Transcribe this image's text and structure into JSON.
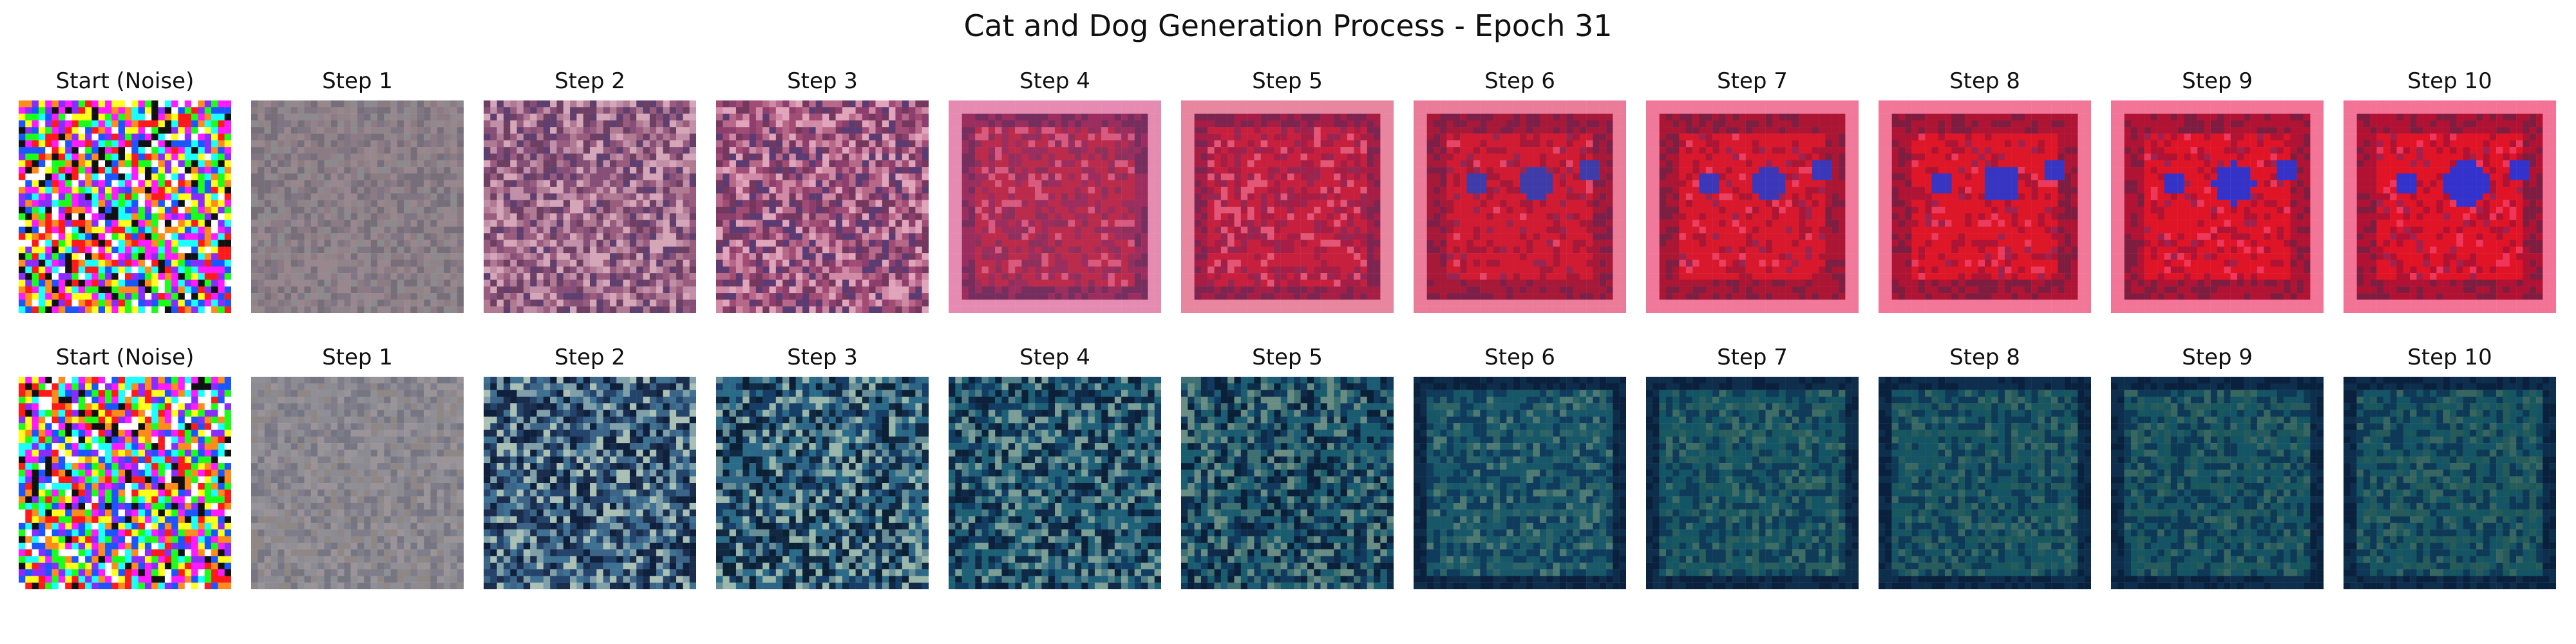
{
  "figure": {
    "title": "Cat and Dog Generation Process - Epoch 31"
  },
  "rows": [
    {
      "row_name": "cat-row",
      "panels": [
        {
          "label": "Start (Noise)",
          "kind": "noise",
          "colors": [
            "#ff1a1a",
            "#1aff1a",
            "#1a55ff",
            "#ffff1a",
            "#ff1aff",
            "#1affff",
            "#ffffff",
            "#111111",
            "#ff8b1a",
            "#8a2cff"
          ]
        },
        {
          "label": "Step 1",
          "kind": "soft",
          "colors": [
            "#8c7b83",
            "#918489",
            "#807582",
            "#99878e",
            "#766f7a",
            "#8d8a8e"
          ]
        },
        {
          "label": "Step 2",
          "kind": "soft",
          "colors": [
            "#9a5c7e",
            "#b07a93",
            "#6d3f63",
            "#c190a8",
            "#864f78",
            "#d5a6b7",
            "#5e3f6f"
          ]
        },
        {
          "label": "Step 3",
          "kind": "soft",
          "colors": [
            "#a14c74",
            "#b76788",
            "#74375d",
            "#d18aa6",
            "#8d3e6d",
            "#e0a5bb",
            "#5b3b72"
          ]
        },
        {
          "label": "Step 4",
          "kind": "redsquare",
          "colors": [
            "#9c2d5f",
            "#bb2b4b",
            "#752e5e",
            "#d85a7f",
            "#8d315c",
            "#e58bb2",
            "#5e4a80"
          ]
        },
        {
          "label": "Step 5",
          "kind": "redsquare",
          "colors": [
            "#a61e45",
            "#c7203e",
            "#7e2450",
            "#e35676",
            "#982652",
            "#e8859f",
            "#674a88"
          ]
        },
        {
          "label": "Step 6",
          "kind": "eyes",
          "colors": [
            "#a61938",
            "#d01b32",
            "#7d1f48",
            "#e54667",
            "#9a2550",
            "#ea7c9a",
            "#3f3caa"
          ]
        },
        {
          "label": "Step 7",
          "kind": "eyes",
          "colors": [
            "#ab1634",
            "#d8182c",
            "#7c1f42",
            "#ea3f5f",
            "#9d2350",
            "#f0789a",
            "#3b37b8"
          ]
        },
        {
          "label": "Step 8",
          "kind": "eyes",
          "colors": [
            "#ae1434",
            "#dd1628",
            "#7e1d40",
            "#ec3a5c",
            "#a0224f",
            "#f17698",
            "#3735c1"
          ]
        },
        {
          "label": "Step 9",
          "kind": "eyes",
          "colors": [
            "#b01333",
            "#df1527",
            "#7f1d40",
            "#ee375b",
            "#a1224f",
            "#f27598",
            "#3533c7"
          ]
        },
        {
          "label": "Step 10",
          "kind": "eyes",
          "colors": [
            "#b11233",
            "#e01426",
            "#7f1d40",
            "#ef365a",
            "#a2214f",
            "#f37397",
            "#3432cc"
          ]
        }
      ]
    },
    {
      "row_name": "dog-row",
      "panels": [
        {
          "label": "Start (Noise)",
          "kind": "noise",
          "colors": [
            "#ff1a1a",
            "#1aff1a",
            "#1a55ff",
            "#ffff1a",
            "#ff1aff",
            "#1affff",
            "#ffffff",
            "#111111",
            "#ff8b1a",
            "#8a2cff"
          ]
        },
        {
          "label": "Step 1",
          "kind": "soft",
          "colors": [
            "#8c8b91",
            "#8f8686",
            "#7f7d8a",
            "#9a9499",
            "#757681",
            "#908f95"
          ]
        },
        {
          "label": "Step 2",
          "kind": "soft",
          "colors": [
            "#24446b",
            "#3b6487",
            "#1b2d4c",
            "#7fa0a8",
            "#3e7192",
            "#aac0b5",
            "#0f203c"
          ]
        },
        {
          "label": "Step 3",
          "kind": "soft",
          "colors": [
            "#163e67",
            "#2e6585",
            "#112943",
            "#688f95",
            "#2a6c88",
            "#99b7aa",
            "#0b1f35"
          ]
        },
        {
          "label": "Step 4",
          "kind": "soft",
          "colors": [
            "#123d63",
            "#1f5f7a",
            "#0e2a47",
            "#4f7e86",
            "#1d6174",
            "#7b9f96",
            "#0c2039"
          ]
        },
        {
          "label": "Step 5",
          "kind": "soft",
          "colors": [
            "#103b5f",
            "#1c5d74",
            "#0e2b49",
            "#3f7072",
            "#185c6d",
            "#6a8d83",
            "#0a2039"
          ]
        },
        {
          "label": "Step 6",
          "kind": "grid",
          "colors": [
            "#0f3b5c",
            "#1a5a6b",
            "#0e2d4b",
            "#2f6467",
            "#175767",
            "#4f7a73",
            "#0a203c"
          ]
        },
        {
          "label": "Step 7",
          "kind": "grid",
          "colors": [
            "#0f3a58",
            "#19585f",
            "#0e2e4c",
            "#2a5f5d",
            "#145565",
            "#3e6d66",
            "#0a203d"
          ]
        },
        {
          "label": "Step 8",
          "kind": "grid",
          "colors": [
            "#0e3957",
            "#18585d",
            "#0e2e4d",
            "#285c5c",
            "#145464",
            "#3a6963",
            "#0a213e"
          ]
        },
        {
          "label": "Step 9",
          "kind": "grid",
          "colors": [
            "#0e3956",
            "#18575c",
            "#0e2e4d",
            "#275b5b",
            "#145464",
            "#386761",
            "#0a213e"
          ]
        },
        {
          "label": "Step 10",
          "kind": "grid",
          "colors": [
            "#0e3956",
            "#18575c",
            "#0e2e4d",
            "#275b5a",
            "#145464",
            "#376660",
            "#0a213e"
          ]
        }
      ]
    }
  ]
}
